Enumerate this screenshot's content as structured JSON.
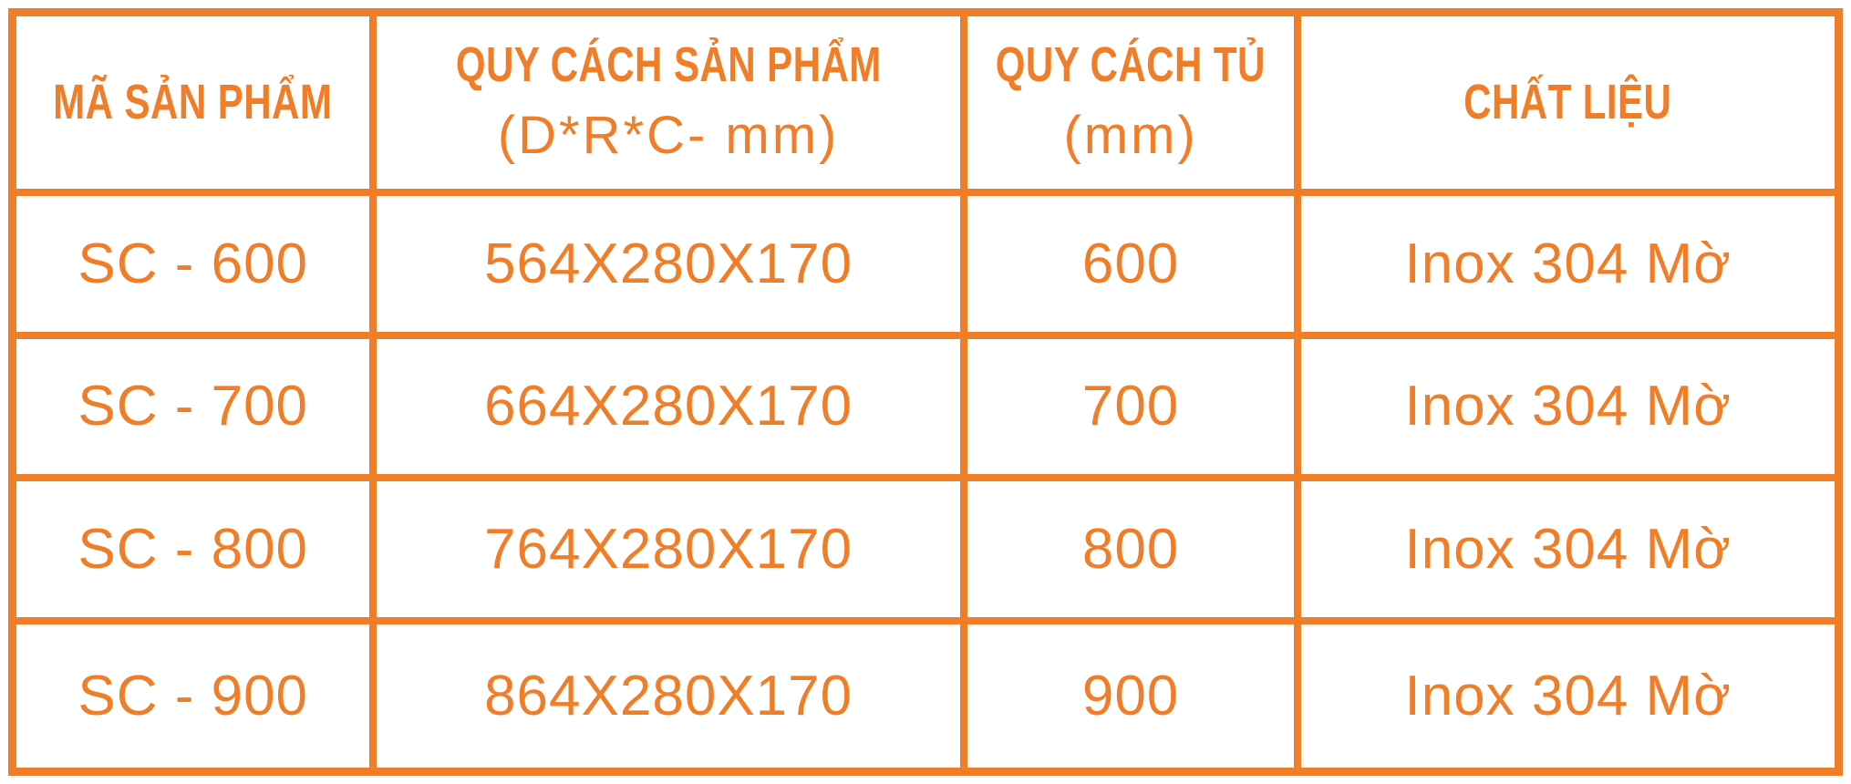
{
  "theme": {
    "accent_orange": "#F07D28",
    "background": "#FFFFFF"
  },
  "table": {
    "columns": [
      {
        "label": "MÃ SẢN PHẨM",
        "sublabel": ""
      },
      {
        "label": "QUY CÁCH SẢN PHẨM",
        "sublabel": "(D*R*C- mm)"
      },
      {
        "label": "QUY CÁCH TỦ",
        "sublabel": "(mm)"
      },
      {
        "label": "CHẤT LIỆU",
        "sublabel": ""
      }
    ],
    "rows": [
      [
        "SC - 600",
        "564X280X170",
        "600",
        "Inox 304 Mờ"
      ],
      [
        "SC - 700",
        "664X280X170",
        "700",
        "Inox 304 Mờ"
      ],
      [
        "SC - 800",
        "764X280X170",
        "800",
        "Inox 304 Mờ"
      ],
      [
        "SC - 900",
        "864X280X170",
        "900",
        "Inox 304 Mờ"
      ]
    ]
  }
}
